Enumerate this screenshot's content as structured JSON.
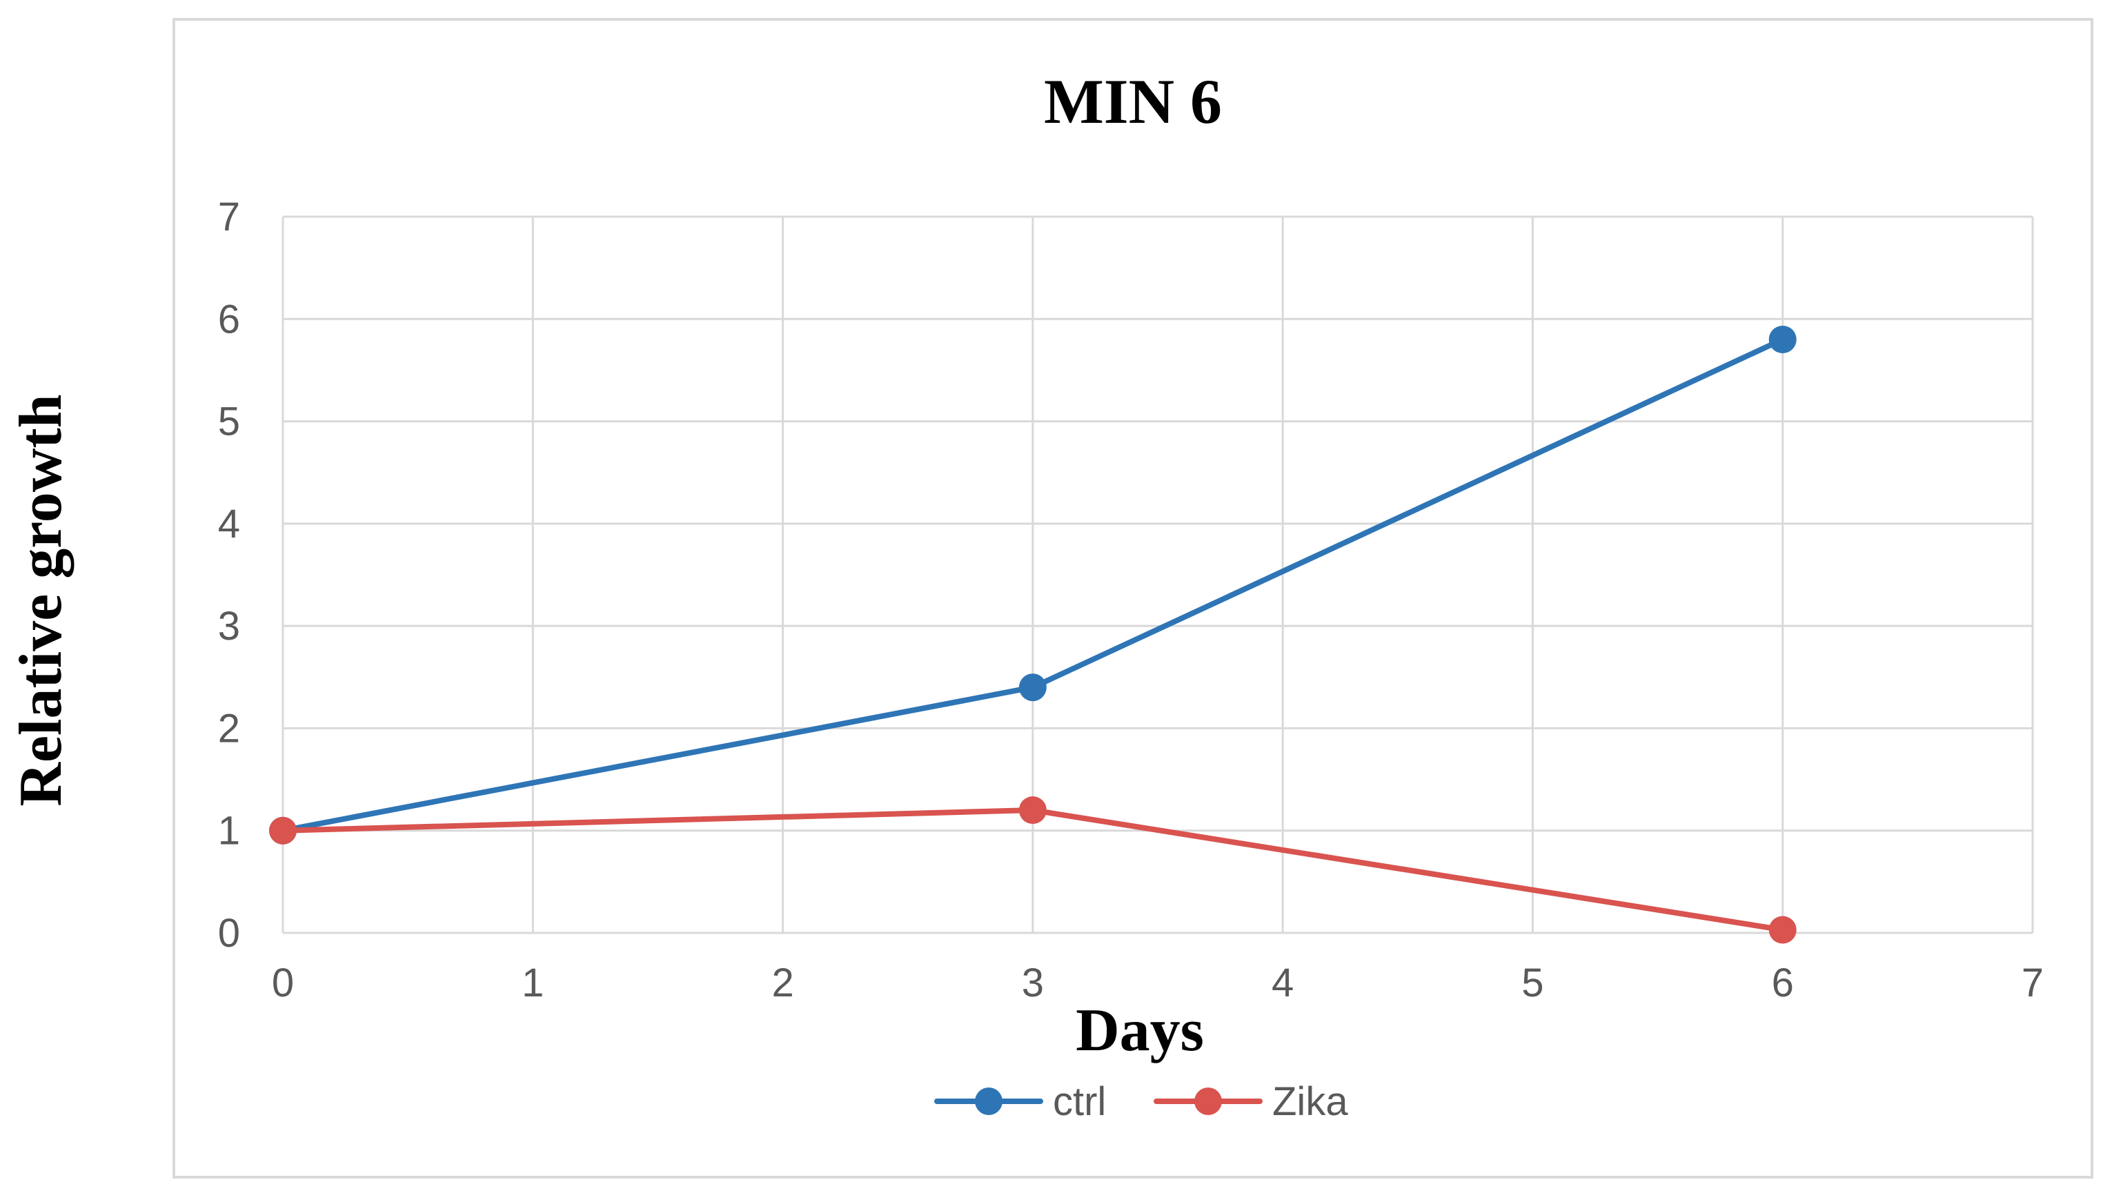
{
  "chart_data": {
    "type": "line",
    "title": "MIN 6",
    "xlabel": "Days",
    "ylabel": "Relative growth",
    "xlim": [
      0,
      7
    ],
    "ylim": [
      0,
      7
    ],
    "x_ticks": [
      "0",
      "1",
      "2",
      "3",
      "4",
      "5",
      "6",
      "7"
    ],
    "y_ticks": [
      "0",
      "1",
      "2",
      "3",
      "4",
      "5",
      "6",
      "7"
    ],
    "grid": true,
    "legend_position": "bottom",
    "series": [
      {
        "name": "ctrl",
        "color": "#2E75B6",
        "x": [
          0,
          3,
          6
        ],
        "values": [
          1.0,
          2.4,
          5.8
        ]
      },
      {
        "name": "Zika",
        "color": "#D9534F",
        "x": [
          0,
          3,
          6
        ],
        "values": [
          1.0,
          1.2,
          0.03
        ]
      }
    ]
  }
}
